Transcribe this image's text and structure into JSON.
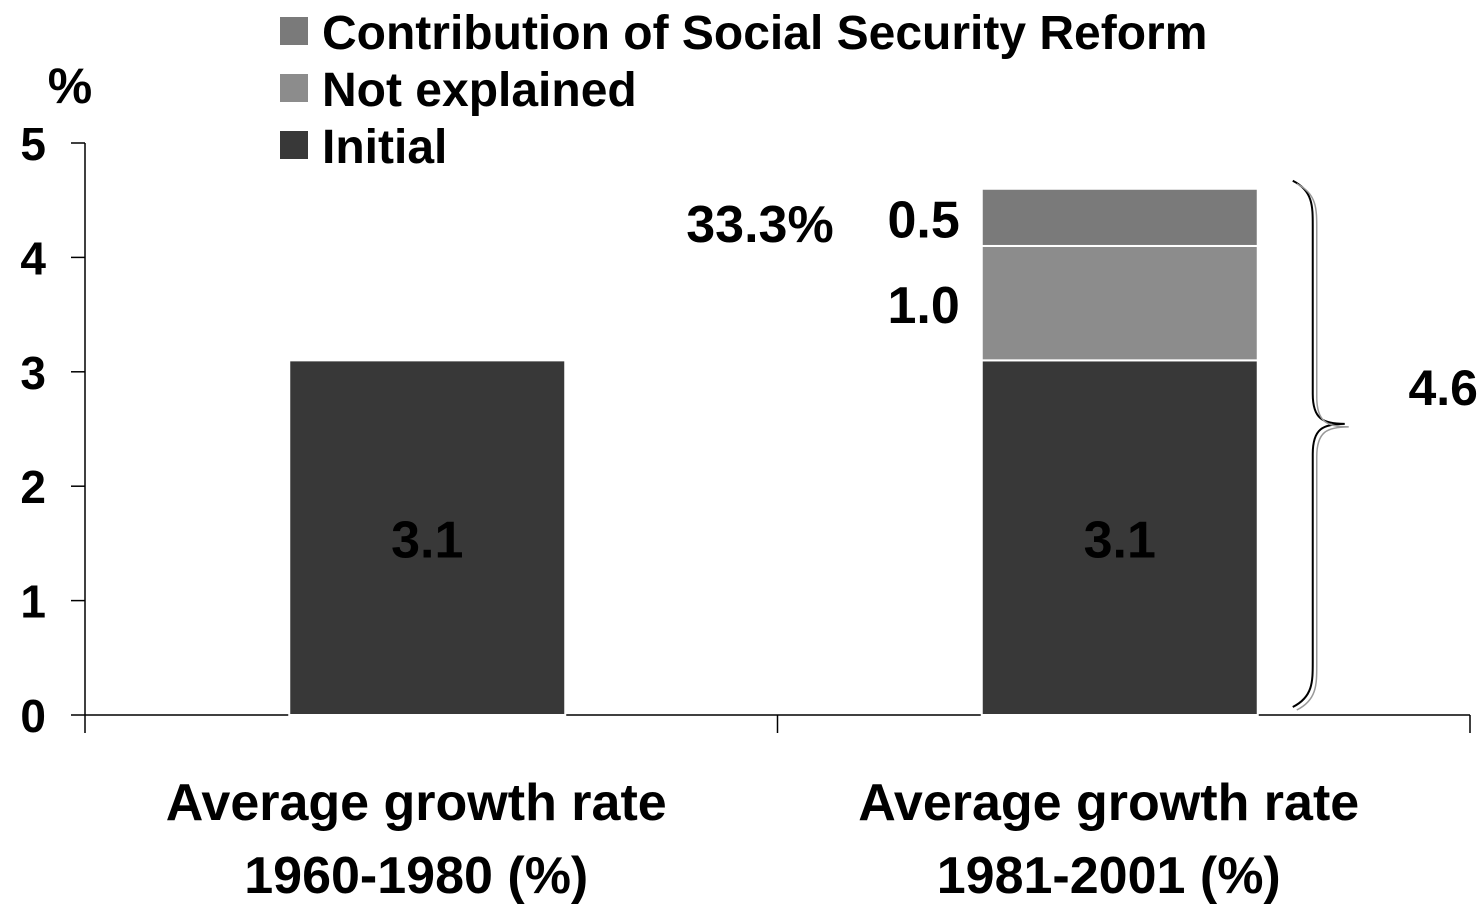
{
  "chart_data": {
    "type": "bar",
    "stacked": true,
    "ylabel": "%",
    "ylim": [
      0,
      5
    ],
    "yticks": [
      "0",
      "1",
      "2",
      "3",
      "4",
      "5"
    ],
    "grid": false,
    "legend_position": "top",
    "categories": [
      {
        "line1": "Average growth rate",
        "line2": "1960-1980 (%)"
      },
      {
        "line1": "Average growth rate",
        "line2": "1981-2001 (%)"
      }
    ],
    "series": [
      {
        "name": "Initial",
        "color": "#383838",
        "values": [
          3.1,
          3.1
        ],
        "labels": [
          "3.1",
          "3.1"
        ]
      },
      {
        "name": "Not explained",
        "color": "#8c8c8c",
        "values": [
          0,
          1.0
        ],
        "labels": [
          "",
          "1.0"
        ]
      },
      {
        "name": "Contribution of Social Security Reform",
        "color": "#7a7a7a",
        "values": [
          0,
          0.5
        ],
        "labels": [
          "",
          "0.5"
        ]
      }
    ],
    "legend_order": [
      "Contribution of Social Security Reform",
      "Not explained",
      "Initial"
    ],
    "annotations": {
      "percent_share": "33.3%",
      "total": "4.6"
    }
  }
}
